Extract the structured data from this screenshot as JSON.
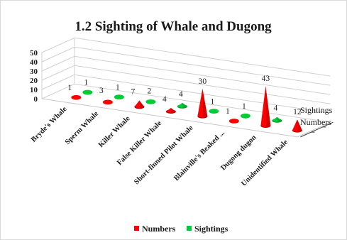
{
  "chart_data": {
    "type": "bar",
    "style": "3d-cone",
    "title": "1.2 Sighting of Whale and Dugong",
    "categories": [
      "Bryde's Whale",
      "Sperm Whale",
      "Killer Whale",
      "False Killer Whale",
      "Short-finned Pilot Whale",
      "Blainville's Beaked ...",
      "Dugong dugon",
      "Unidentified Whale"
    ],
    "series": [
      {
        "name": "Numbers",
        "values": [
          1,
          3,
          7,
          4,
          30,
          1,
          43,
          12
        ],
        "color": "#ff0000"
      },
      {
        "name": "Sightings",
        "values": [
          1,
          1,
          2,
          4,
          1,
          1,
          4,
          null
        ],
        "color": "#00cc33"
      }
    ],
    "yticks": [
      "0",
      "10",
      "20",
      "30",
      "40",
      "50"
    ],
    "ylim": [
      0,
      50
    ],
    "depth_labels": [
      "Sightings",
      "Numbers"
    ],
    "grid": true,
    "legend_position": "bottom"
  }
}
